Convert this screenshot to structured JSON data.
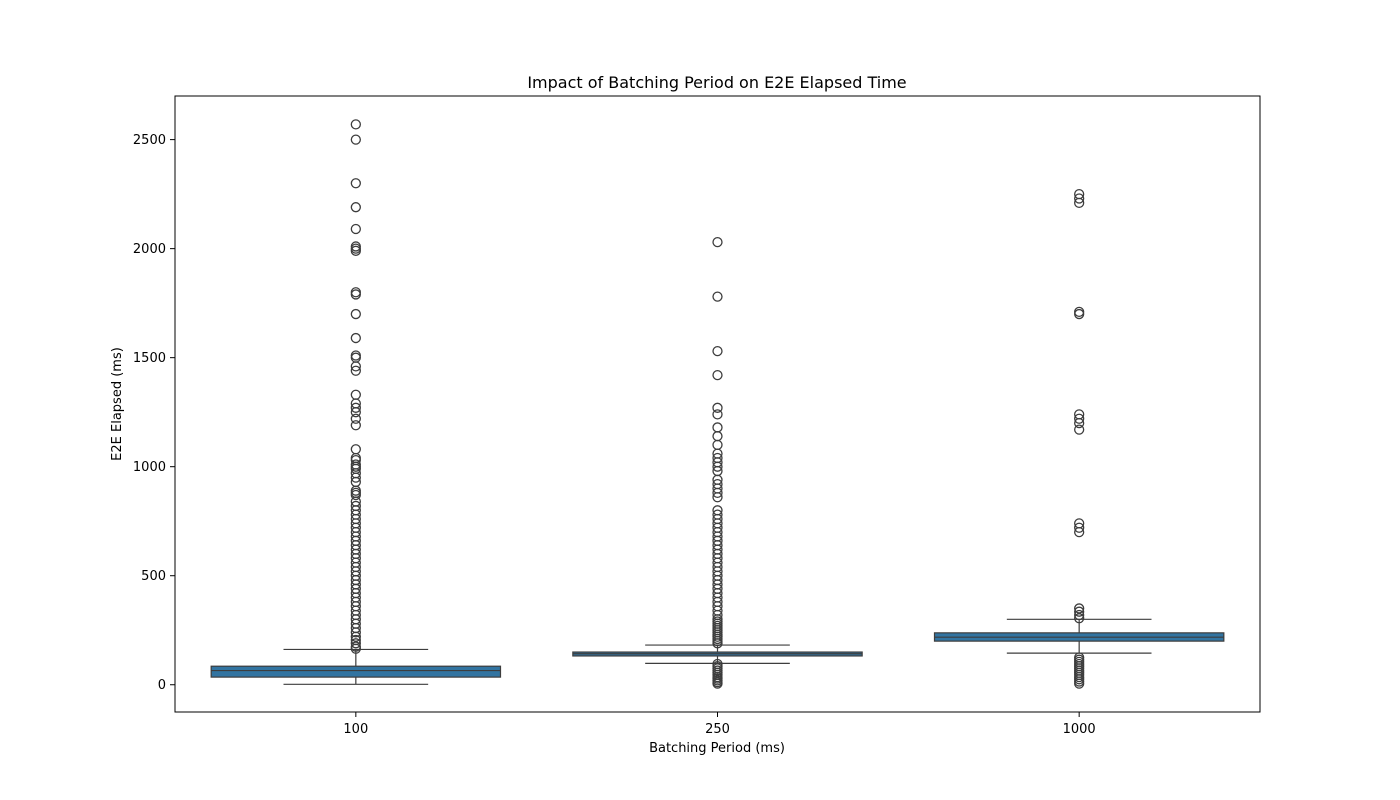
{
  "chart_data": {
    "type": "box",
    "title": "Impact of Batching Period on E2E Elapsed Time",
    "xlabel": "Batching Period (ms)",
    "ylabel": "E2E Elapsed (ms)",
    "categories": [
      "100",
      "250",
      "1000"
    ],
    "ylim": [
      -125,
      2700
    ],
    "yticks": [
      0,
      500,
      1000,
      1500,
      2000,
      2500
    ],
    "box_color": "#3274a1",
    "line_color": "#3d3d3d",
    "boxes": [
      {
        "category": "100",
        "whisker_low": 2,
        "q1": 35,
        "median": 65,
        "q3": 85,
        "whisker_high": 162,
        "outliers": [
          165,
          175,
          190,
          205,
          220,
          240,
          260,
          280,
          300,
          320,
          340,
          360,
          380,
          400,
          420,
          440,
          460,
          480,
          500,
          520,
          540,
          560,
          580,
          600,
          620,
          640,
          660,
          680,
          700,
          720,
          740,
          760,
          780,
          800,
          820,
          840,
          870,
          880,
          890,
          930,
          950,
          970,
          990,
          1000,
          1010,
          1030,
          1040,
          1080,
          1190,
          1220,
          1250,
          1270,
          1290,
          1330,
          1440,
          1460,
          1500,
          1510,
          1590,
          1700,
          1790,
          1800,
          1990,
          2000,
          2010,
          2090,
          2190,
          2300,
          2500,
          2570
        ]
      },
      {
        "category": "250",
        "whisker_low": 98,
        "q1": 132,
        "median": 142,
        "q3": 150,
        "whisker_high": 182,
        "outliers": [
          5,
          12,
          20,
          28,
          35,
          45,
          55,
          65,
          75,
          85,
          95,
          190,
          200,
          210,
          220,
          230,
          240,
          250,
          260,
          270,
          280,
          290,
          300,
          320,
          340,
          360,
          380,
          400,
          420,
          440,
          460,
          480,
          500,
          520,
          540,
          560,
          580,
          600,
          620,
          640,
          660,
          680,
          700,
          720,
          740,
          760,
          780,
          800,
          860,
          880,
          900,
          920,
          940,
          980,
          1000,
          1020,
          1040,
          1060,
          1100,
          1140,
          1180,
          1240,
          1270,
          1420,
          1530,
          1780,
          2030
        ]
      },
      {
        "category": "1000",
        "whisker_low": 145,
        "q1": 200,
        "median": 218,
        "q3": 238,
        "whisker_high": 300,
        "outliers": [
          5,
          15,
          25,
          35,
          45,
          55,
          65,
          75,
          85,
          95,
          105,
          115,
          125,
          305,
          320,
          335,
          350,
          700,
          720,
          740,
          1170,
          1200,
          1220,
          1240,
          1700,
          1710,
          2210,
          2230,
          2250
        ]
      }
    ]
  }
}
